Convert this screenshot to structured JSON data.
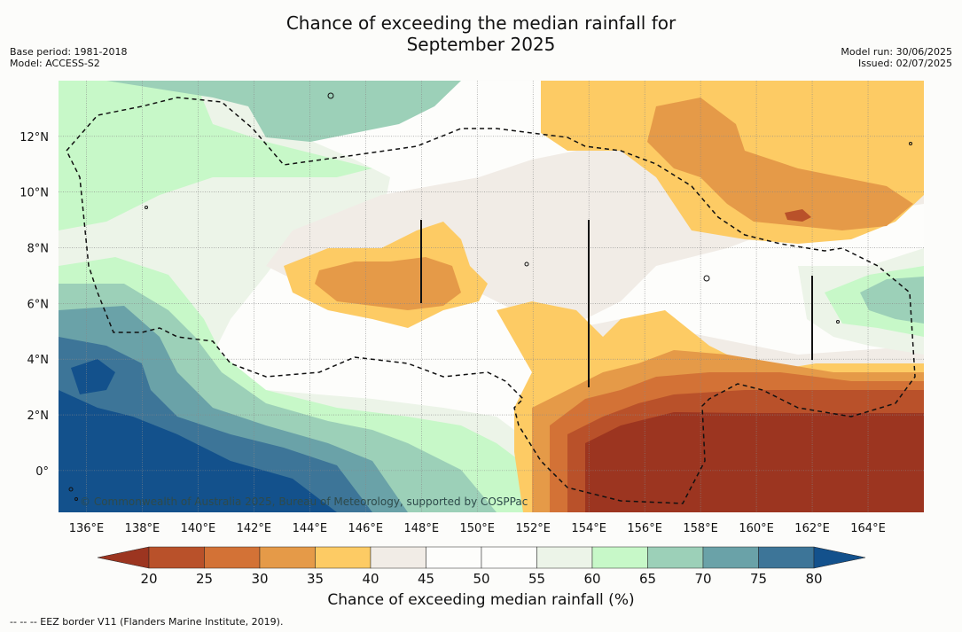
{
  "title": {
    "line1": "Chance of exceeding the median rainfall for",
    "line2": "September 2025"
  },
  "meta": {
    "base_period": "Base period: 1981-2018",
    "model": "Model: ACCESS-S2",
    "model_run": "Model run: 30/06/2025",
    "issued": "Issued: 02/07/2025"
  },
  "map": {
    "lon_range": [
      135,
      166
    ],
    "lat_range": [
      -1.5,
      14
    ],
    "x_ticks": [
      "136°E",
      "138°E",
      "140°E",
      "142°E",
      "144°E",
      "146°E",
      "148°E",
      "150°E",
      "152°E",
      "154°E",
      "156°E",
      "158°E",
      "160°E",
      "162°E",
      "164°E"
    ],
    "y_ticks": [
      "12°N",
      "10°N",
      "8°N",
      "6°N",
      "4°N",
      "2°N",
      "0°"
    ],
    "copyright": "© Commonwealth of Australia 2025, Bureau of Meteorology, supported by COSPPac",
    "colors": {
      "c20": "#9c3520",
      "c25": "#b9512a",
      "c30": "#d37236",
      "c35": "#e59a48",
      "c40": "#fdcb64",
      "c45": "#f1ece6",
      "c50": "#fdfdfb",
      "c55": "#fdfdfb",
      "c60": "#ecf4e8",
      "c65": "#c7f8c8",
      "c70": "#9cd0b8",
      "c75": "#6aa2a8",
      "c80": "#3d7598",
      "c85": "#13518c"
    }
  },
  "colorbar": {
    "ticks": [
      "20",
      "25",
      "30",
      "35",
      "40",
      "45",
      "50",
      "55",
      "60",
      "65",
      "70",
      "75",
      "80"
    ],
    "colors": [
      "#b9512a",
      "#d37236",
      "#e59a48",
      "#fdcb64",
      "#f1ece6",
      "#fdfdfb",
      "#fdfdfb",
      "#ecf4e8",
      "#c7f8c8",
      "#9cd0b8",
      "#6aa2a8",
      "#3d7598"
    ],
    "low_color": "#9c3520",
    "high_color": "#13518c",
    "title": "Chance of exceeding median rainfall (%)"
  },
  "legend_note": "--  --  -- EEZ border V11 (Flanders Marine Institute, 2019)."
}
